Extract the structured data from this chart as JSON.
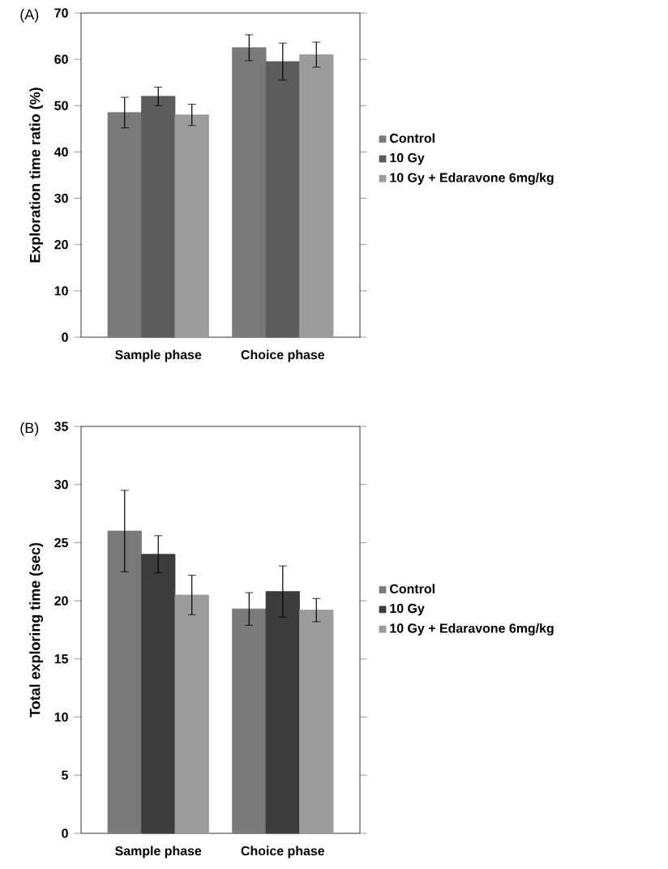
{
  "chart_data": [
    {
      "type": "bar",
      "title": "(A)",
      "ylabel": "Exploration time ratio (%)",
      "categories": [
        "Sample phase",
        "Choice phase"
      ],
      "ylim": [
        0,
        70
      ],
      "yticks": [
        0,
        10,
        20,
        30,
        40,
        50,
        60,
        70
      ],
      "legend": "right",
      "series": [
        {
          "name": "Control",
          "color": "#7a7a7a",
          "values": [
            48.5,
            62.5
          ],
          "errors": [
            3.3,
            2.8
          ]
        },
        {
          "name": "10 Gy",
          "color": "#5c5c5c",
          "values": [
            52,
            59.5
          ],
          "errors": [
            2,
            4
          ]
        },
        {
          "name": "10 Gy + Edaravone 6mg/kg",
          "color": "#9c9c9c",
          "values": [
            48,
            61
          ],
          "errors": [
            2.3,
            2.7
          ]
        }
      ]
    },
    {
      "type": "bar",
      "title": "(B)",
      "ylabel": "Total exploring time (sec)",
      "categories": [
        "Sample phase",
        "Choice phase"
      ],
      "ylim": [
        0,
        35
      ],
      "yticks": [
        0,
        5,
        10,
        15,
        20,
        25,
        30,
        35
      ],
      "legend": "right",
      "series": [
        {
          "name": "Control",
          "color": "#7a7a7a",
          "values": [
            26,
            19.3
          ],
          "errors": [
            3.5,
            1.4
          ]
        },
        {
          "name": "10 Gy",
          "color": "#3c3c3c",
          "values": [
            24,
            20.8
          ],
          "errors": [
            1.6,
            2.2
          ]
        },
        {
          "name": "10 Gy + Edaravone 6mg/kg",
          "color": "#9c9c9c",
          "values": [
            20.5,
            19.2
          ],
          "errors": [
            1.7,
            1
          ]
        }
      ]
    }
  ]
}
